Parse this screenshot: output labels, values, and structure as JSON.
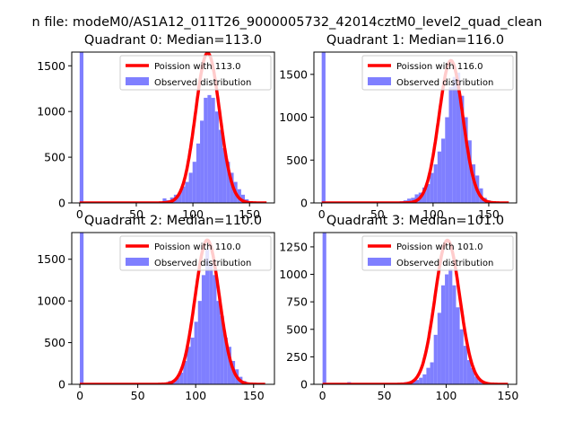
{
  "figure": {
    "suptitle": "n file: modeM0/AS1A12_011T26_9000005732_42014cztM0_level2_quad_clean"
  },
  "colors": {
    "histogram": "#7f7fff",
    "poisson_line": "#ff0000",
    "axes": "#000000",
    "background": "#ffffff"
  },
  "chart_data": [
    {
      "type": "bar",
      "title": "Quadrant 0: Median=113.0",
      "median": 113.0,
      "xlim": [
        -7,
        172
      ],
      "ylim": [
        0,
        1650
      ],
      "xticks": [
        0,
        50,
        100,
        150
      ],
      "yticks": [
        0,
        500,
        1000,
        1500
      ],
      "grid": false,
      "legend_position": "top-right",
      "legend": [
        "Poission with 113.0",
        "Observed distribution"
      ],
      "series": [
        {
          "name": "Poission with 113.0",
          "kind": "line",
          "mean": 113.0,
          "peak": 1640,
          "xrange": [
            0,
            165
          ]
        },
        {
          "name": "Observed distribution",
          "kind": "histogram",
          "bin_width": 3.3,
          "bins": [
            [
              0,
              1650
            ],
            [
              70,
              10
            ],
            [
              73.3,
              50
            ],
            [
              76.6,
              30
            ],
            [
              79.9,
              60
            ],
            [
              83.2,
              90
            ],
            [
              86.5,
              110
            ],
            [
              89.8,
              180
            ],
            [
              93.1,
              230
            ],
            [
              96.4,
              330
            ],
            [
              99.7,
              450
            ],
            [
              103,
              650
            ],
            [
              106.3,
              900
            ],
            [
              109.6,
              1150
            ],
            [
              112.9,
              1180
            ],
            [
              116.2,
              1150
            ],
            [
              119.5,
              1000
            ],
            [
              122.8,
              800
            ],
            [
              126.1,
              600
            ],
            [
              129.4,
              450
            ],
            [
              132.7,
              330
            ],
            [
              136,
              230
            ],
            [
              139.3,
              150
            ],
            [
              142.6,
              90
            ],
            [
              145.9,
              40
            ],
            [
              149.2,
              15
            ]
          ]
        }
      ]
    },
    {
      "type": "bar",
      "title": "Quadrant 1: Median=116.0",
      "median": 116.0,
      "xlim": [
        -7,
        175
      ],
      "ylim": [
        0,
        1760
      ],
      "xticks": [
        0,
        50,
        100,
        150
      ],
      "yticks": [
        0,
        500,
        1000,
        1500
      ],
      "grid": false,
      "legend_position": "top-right",
      "legend": [
        "Poission with 116.0",
        "Observed distribution"
      ],
      "series": [
        {
          "name": "Poission with 116.0",
          "kind": "line",
          "mean": 116.0,
          "peak": 1660,
          "xrange": [
            0,
            168
          ]
        },
        {
          "name": "Observed distribution",
          "kind": "histogram",
          "bin_width": 3.4,
          "bins": [
            [
              0,
              1760
            ],
            [
              70,
              20
            ],
            [
              73.4,
              30
            ],
            [
              76.8,
              50
            ],
            [
              80.2,
              60
            ],
            [
              83.6,
              100
            ],
            [
              87,
              120
            ],
            [
              90.4,
              180
            ],
            [
              93.8,
              220
            ],
            [
              97.2,
              350
            ],
            [
              100.6,
              450
            ],
            [
              104,
              600
            ],
            [
              107.4,
              750
            ],
            [
              110.8,
              1000
            ],
            [
              114.2,
              1350
            ],
            [
              117.6,
              1470
            ],
            [
              121,
              1520
            ],
            [
              124.4,
              1250
            ],
            [
              127.8,
              1000
            ],
            [
              131.2,
              730
            ],
            [
              134.6,
              450
            ],
            [
              138,
              320
            ],
            [
              141.4,
              170
            ],
            [
              144.8,
              60
            ],
            [
              148.2,
              30
            ],
            [
              151.6,
              10
            ]
          ]
        }
      ]
    },
    {
      "type": "bar",
      "title": "Quadrant 2: Median=110.0",
      "median": 110.0,
      "xlim": [
        -7,
        168
      ],
      "ylim": [
        0,
        1820
      ],
      "xticks": [
        0,
        50,
        100,
        150
      ],
      "yticks": [
        0,
        500,
        1000,
        1500
      ],
      "grid": false,
      "legend_position": "top-right",
      "legend": [
        "Poission with 110.0",
        "Observed distribution"
      ],
      "series": [
        {
          "name": "Poission with 110.0",
          "kind": "line",
          "mean": 110.0,
          "peak": 1730,
          "xrange": [
            0,
            160
          ]
        },
        {
          "name": "Observed distribution",
          "kind": "histogram",
          "bin_width": 3.2,
          "bins": [
            [
              0,
              1820
            ],
            [
              70,
              10
            ],
            [
              73.2,
              20
            ],
            [
              76.4,
              40
            ],
            [
              79.6,
              50
            ],
            [
              82.8,
              80
            ],
            [
              86,
              140
            ],
            [
              89.2,
              280
            ],
            [
              92.4,
              450
            ],
            [
              95.6,
              560
            ],
            [
              98.8,
              750
            ],
            [
              102,
              1000
            ],
            [
              105.2,
              1310
            ],
            [
              108.4,
              1620
            ],
            [
              111.6,
              1440
            ],
            [
              114.8,
              1310
            ],
            [
              118,
              1000
            ],
            [
              121.2,
              820
            ],
            [
              124.4,
              560
            ],
            [
              127.6,
              450
            ],
            [
              130.8,
              280
            ],
            [
              134,
              180
            ],
            [
              137.2,
              90
            ],
            [
              140.4,
              40
            ],
            [
              143.6,
              20
            ],
            [
              146.8,
              10
            ]
          ]
        }
      ]
    },
    {
      "type": "bar",
      "title": "Quadrant 3: Median=101.0",
      "median": 101.0,
      "xlim": [
        -7,
        157
      ],
      "ylim": [
        0,
        1380
      ],
      "xticks": [
        0,
        50,
        100,
        150
      ],
      "yticks": [
        0,
        250,
        500,
        750,
        1000,
        1250
      ],
      "grid": false,
      "legend_position": "top-right",
      "legend": [
        "Poission with 101.0",
        "Observed distribution"
      ],
      "series": [
        {
          "name": "Poission with 101.0",
          "kind": "line",
          "mean": 101.0,
          "peak": 1310,
          "xrange": [
            0,
            150
          ]
        },
        {
          "name": "Observed distribution",
          "kind": "histogram",
          "bin_width": 3.0,
          "bins": [
            [
              0,
              1380
            ],
            [
              20,
              20
            ],
            [
              23,
              10
            ],
            [
              26,
              10
            ],
            [
              29,
              10
            ],
            [
              32,
              10
            ],
            [
              35,
              10
            ],
            [
              60,
              10
            ],
            [
              63,
              15
            ],
            [
              66,
              20
            ],
            [
              69,
              20
            ],
            [
              72,
              30
            ],
            [
              75,
              40
            ],
            [
              78,
              60
            ],
            [
              81,
              90
            ],
            [
              84,
              150
            ],
            [
              87,
              200
            ],
            [
              90,
              450
            ],
            [
              93,
              650
            ],
            [
              96,
              900
            ],
            [
              99,
              1000
            ],
            [
              102,
              1050
            ],
            [
              105,
              900
            ],
            [
              108,
              700
            ],
            [
              111,
              500
            ],
            [
              114,
              350
            ],
            [
              117,
              220
            ],
            [
              120,
              150
            ],
            [
              123,
              70
            ],
            [
              126,
              30
            ],
            [
              129,
              20
            ],
            [
              132,
              10
            ]
          ]
        }
      ]
    }
  ]
}
